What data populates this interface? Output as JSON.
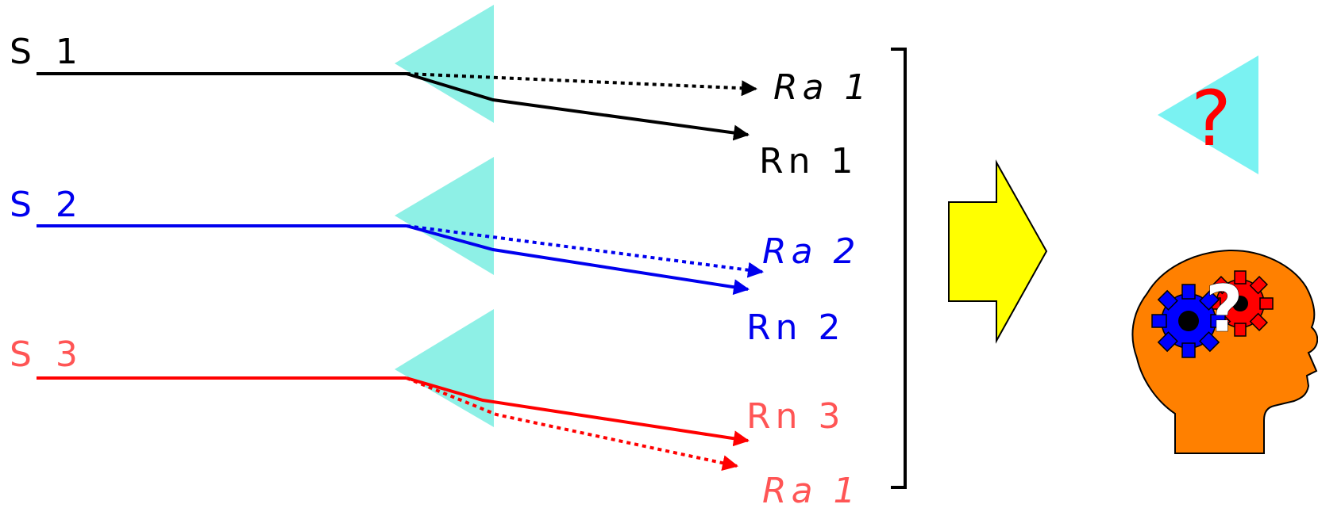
{
  "sources": [
    {
      "label": "S 1",
      "color": "#000000"
    },
    {
      "label": "S 2",
      "color": "#0000ee"
    },
    {
      "label": "S 3",
      "color": "#ff0000"
    }
  ],
  "ray_labels": {
    "ra1": "Ra 1",
    "rn1": "Rn 1",
    "ra2": "Ra 2",
    "rn2": "Rn 2",
    "rn3": "Rn 3",
    "ra3": "Ra 1"
  },
  "question_mark": "?",
  "colors": {
    "prism": "#8ef0e6",
    "prism_result": "#7af2f2",
    "arrow_fill": "#ffff00",
    "head_fill": "#ff8000",
    "gear_blue": "#0000ff",
    "gear_red": "#ff0000",
    "question_red": "#ff0000",
    "question_white": "#ffffff",
    "label_red": "#ff5555"
  },
  "icons": [
    "prism-icon",
    "big-arrow-icon",
    "head-icon",
    "gear-icon",
    "question-icon"
  ]
}
